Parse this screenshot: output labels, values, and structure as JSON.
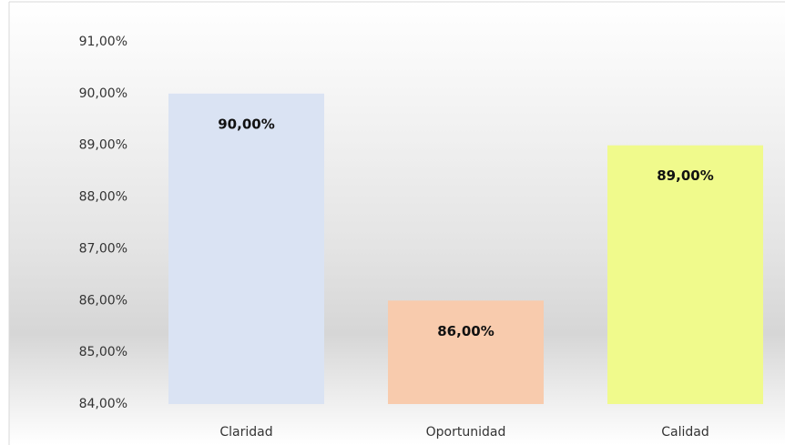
{
  "chart_data": {
    "type": "bar",
    "categories": [
      "Claridad",
      "Oportunidad",
      "Calidad"
    ],
    "values": [
      90,
      86,
      89
    ],
    "value_labels": [
      "90,00%",
      "86,00%",
      "89,00%"
    ],
    "colors": [
      "#dae3f3",
      "#f8cbad",
      "#f0fa8c"
    ],
    "ylim": [
      84,
      91
    ],
    "yticks": [
      {
        "value": 84,
        "label": "84,00%"
      },
      {
        "value": 85,
        "label": "85,00%"
      },
      {
        "value": 86,
        "label": "86,00%"
      },
      {
        "value": 87,
        "label": "87,00%"
      },
      {
        "value": 88,
        "label": "88,00%"
      },
      {
        "value": 89,
        "label": "89,00%"
      },
      {
        "value": 90,
        "label": "90,00%"
      },
      {
        "value": 91,
        "label": "91,00%"
      }
    ],
    "grid": false
  }
}
